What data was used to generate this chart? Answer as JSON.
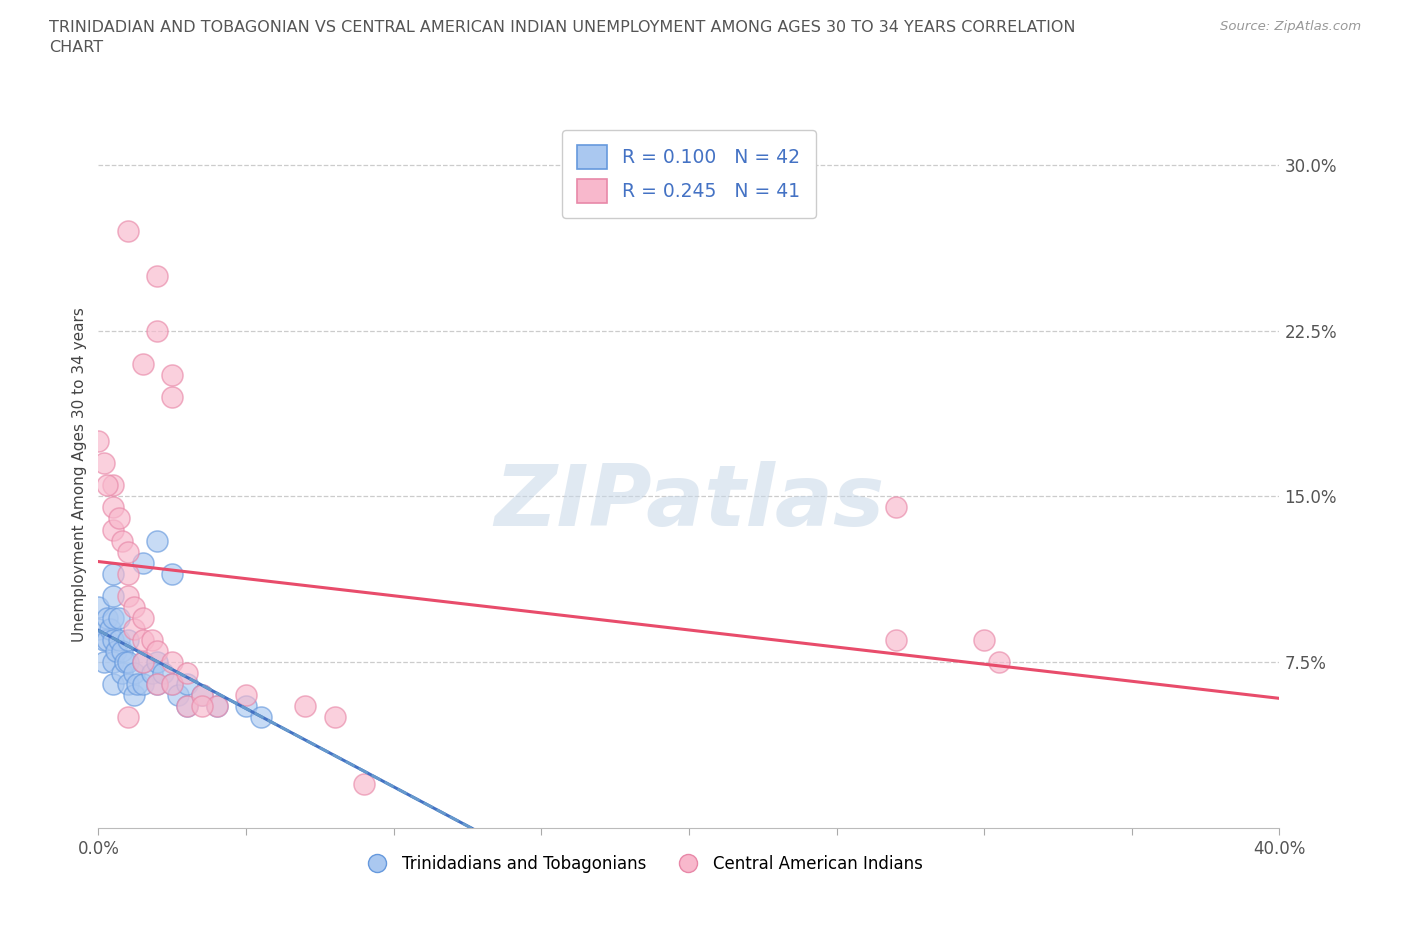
{
  "title_line1": "TRINIDADIAN AND TOBAGONIAN VS CENTRAL AMERICAN INDIAN UNEMPLOYMENT AMONG AGES 30 TO 34 YEARS CORRELATION",
  "title_line2": "CHART",
  "source": "Source: ZipAtlas.com",
  "ylabel": "Unemployment Among Ages 30 to 34 years",
  "xmin": 0.0,
  "xmax": 0.4,
  "ymin": 0.0,
  "ymax": 0.32,
  "xtick_positions": [
    0.0,
    0.05,
    0.1,
    0.15,
    0.2,
    0.25,
    0.3,
    0.35,
    0.4
  ],
  "xtick_labels_visible": {
    "0.0": "0.0%",
    "0.40": "40.0%"
  },
  "yticks": [
    0.075,
    0.15,
    0.225,
    0.3
  ],
  "yticklabels": [
    "7.5%",
    "15.0%",
    "22.5%",
    "30.0%"
  ],
  "grid_yticks": [
    0.075,
    0.15,
    0.225,
    0.3
  ],
  "R_blue": 0.1,
  "N_blue": 42,
  "R_pink": 0.245,
  "N_pink": 41,
  "legend_label_blue": "Trinidadians and Tobagonians",
  "legend_label_pink": "Central American Indians",
  "scatter_blue": [
    [
      0.0,
      0.1
    ],
    [
      0.0,
      0.09
    ],
    [
      0.002,
      0.085
    ],
    [
      0.002,
      0.075
    ],
    [
      0.003,
      0.095
    ],
    [
      0.003,
      0.085
    ],
    [
      0.004,
      0.09
    ],
    [
      0.005,
      0.115
    ],
    [
      0.005,
      0.105
    ],
    [
      0.005,
      0.095
    ],
    [
      0.005,
      0.085
    ],
    [
      0.005,
      0.075
    ],
    [
      0.005,
      0.065
    ],
    [
      0.006,
      0.08
    ],
    [
      0.007,
      0.095
    ],
    [
      0.007,
      0.085
    ],
    [
      0.008,
      0.08
    ],
    [
      0.008,
      0.07
    ],
    [
      0.009,
      0.075
    ],
    [
      0.01,
      0.085
    ],
    [
      0.01,
      0.075
    ],
    [
      0.01,
      0.065
    ],
    [
      0.012,
      0.07
    ],
    [
      0.012,
      0.06
    ],
    [
      0.013,
      0.065
    ],
    [
      0.015,
      0.075
    ],
    [
      0.015,
      0.065
    ],
    [
      0.018,
      0.07
    ],
    [
      0.02,
      0.075
    ],
    [
      0.02,
      0.065
    ],
    [
      0.022,
      0.07
    ],
    [
      0.025,
      0.065
    ],
    [
      0.027,
      0.06
    ],
    [
      0.03,
      0.065
    ],
    [
      0.03,
      0.055
    ],
    [
      0.035,
      0.06
    ],
    [
      0.04,
      0.055
    ],
    [
      0.05,
      0.055
    ],
    [
      0.055,
      0.05
    ],
    [
      0.02,
      0.13
    ],
    [
      0.025,
      0.115
    ],
    [
      0.015,
      0.12
    ]
  ],
  "scatter_pink": [
    [
      0.01,
      0.27
    ],
    [
      0.015,
      0.21
    ],
    [
      0.02,
      0.25
    ],
    [
      0.02,
      0.225
    ],
    [
      0.025,
      0.205
    ],
    [
      0.025,
      0.195
    ],
    [
      0.0,
      0.175
    ],
    [
      0.002,
      0.165
    ],
    [
      0.005,
      0.155
    ],
    [
      0.005,
      0.145
    ],
    [
      0.005,
      0.135
    ],
    [
      0.007,
      0.14
    ],
    [
      0.008,
      0.13
    ],
    [
      0.01,
      0.125
    ],
    [
      0.01,
      0.115
    ],
    [
      0.01,
      0.105
    ],
    [
      0.012,
      0.1
    ],
    [
      0.012,
      0.09
    ],
    [
      0.015,
      0.095
    ],
    [
      0.015,
      0.085
    ],
    [
      0.015,
      0.075
    ],
    [
      0.018,
      0.085
    ],
    [
      0.02,
      0.08
    ],
    [
      0.02,
      0.065
    ],
    [
      0.025,
      0.075
    ],
    [
      0.025,
      0.065
    ],
    [
      0.03,
      0.07
    ],
    [
      0.03,
      0.055
    ],
    [
      0.035,
      0.06
    ],
    [
      0.04,
      0.055
    ],
    [
      0.05,
      0.06
    ],
    [
      0.07,
      0.055
    ],
    [
      0.08,
      0.05
    ],
    [
      0.09,
      0.02
    ],
    [
      0.27,
      0.145
    ],
    [
      0.3,
      0.085
    ],
    [
      0.27,
      0.085
    ],
    [
      0.305,
      0.075
    ],
    [
      0.035,
      0.055
    ],
    [
      0.003,
      0.155
    ],
    [
      0.01,
      0.05
    ]
  ],
  "blue_fill_color": "#aac8f0",
  "blue_edge_color": "#6699dd",
  "pink_fill_color": "#f8b8cc",
  "pink_edge_color": "#e888a8",
  "blue_solid_line_color": "#4472c4",
  "blue_dashed_line_color": "#6699cc",
  "pink_solid_line_color": "#e84c6b",
  "watermark_text": "ZIPatlas",
  "watermark_color": "#c8d8e8",
  "background_color": "#ffffff",
  "title_color": "#555555",
  "source_color": "#999999",
  "tick_color": "#555555",
  "ylabel_color": "#444444"
}
